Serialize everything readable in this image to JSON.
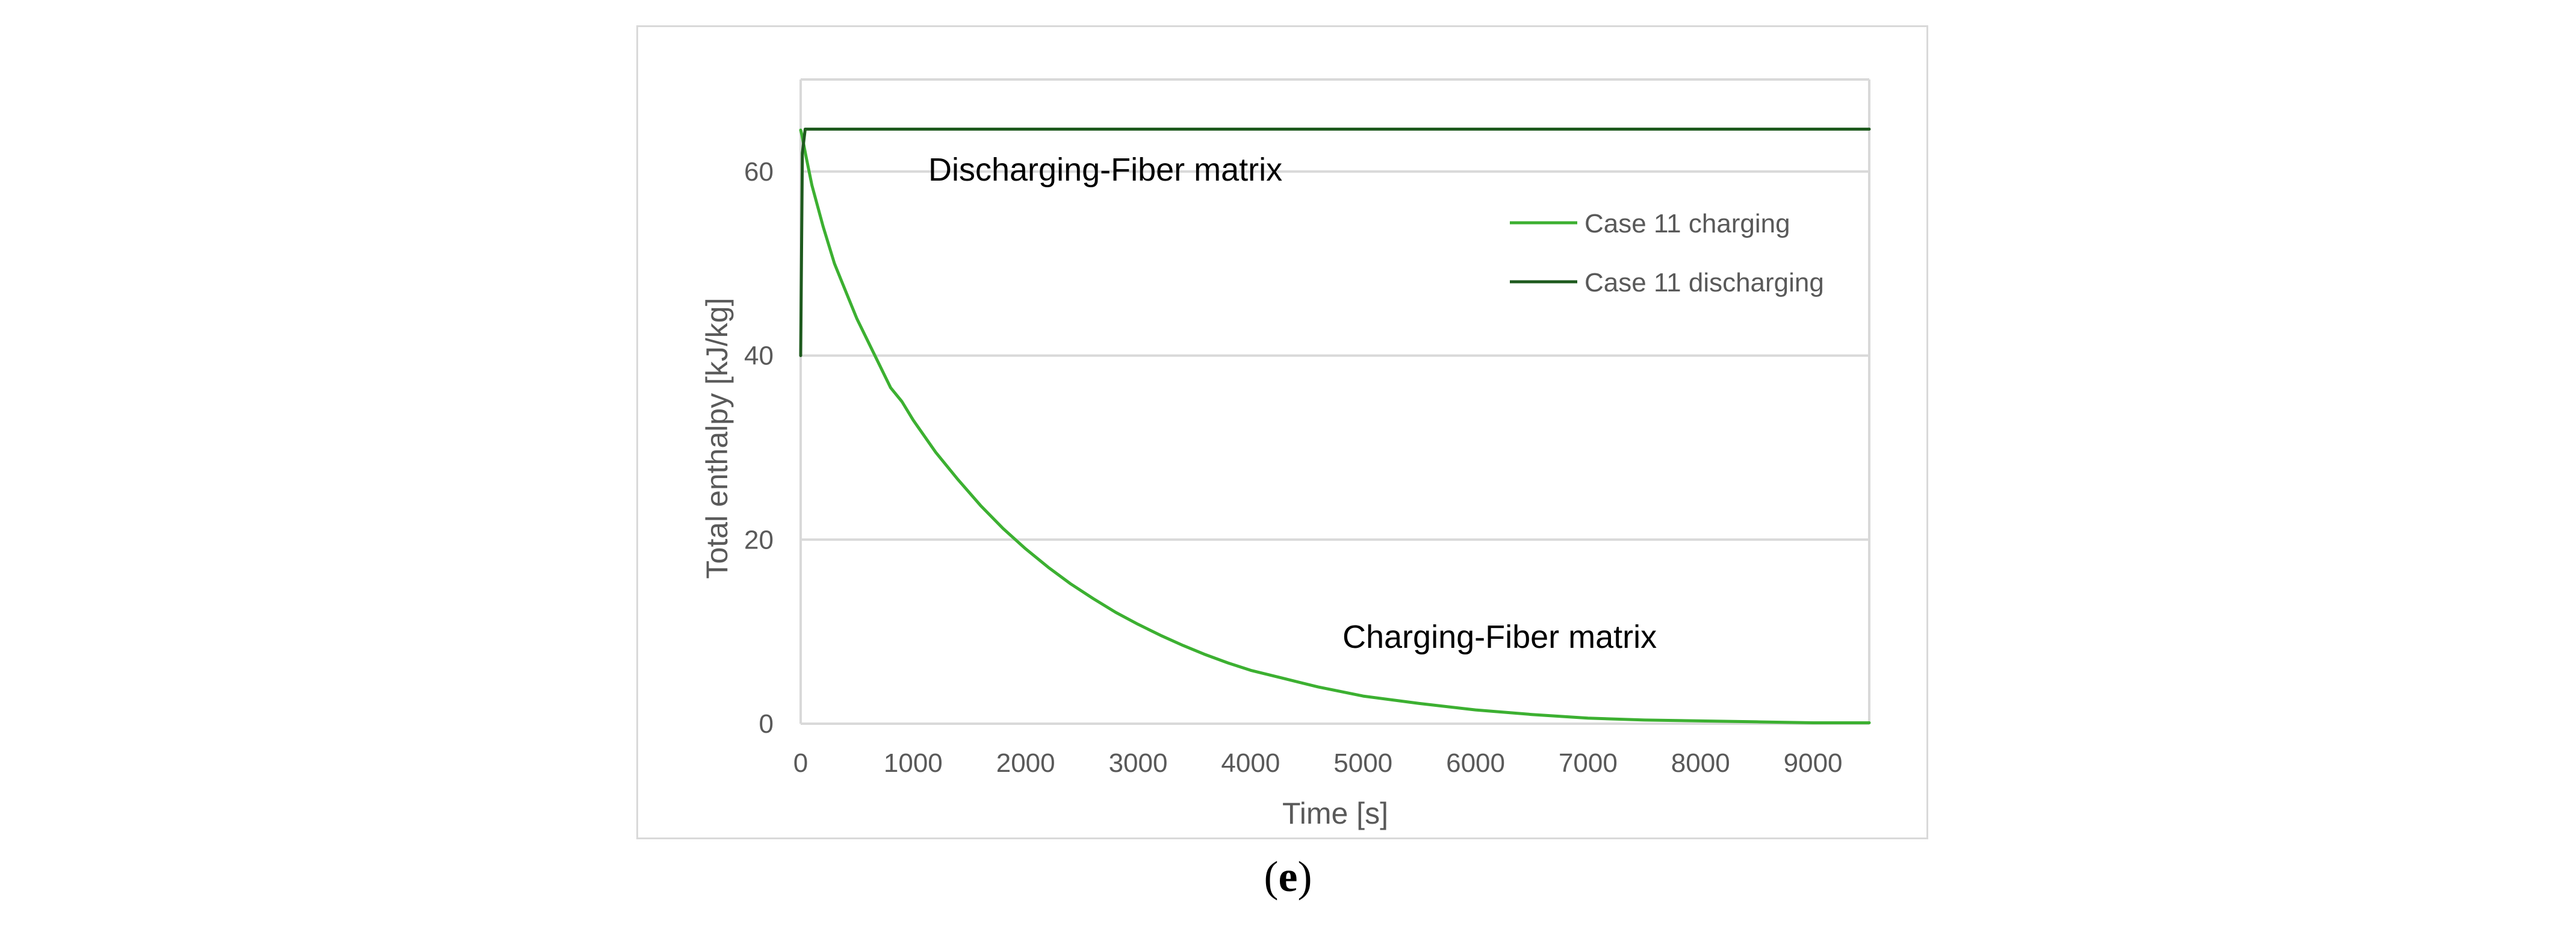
{
  "panel_label": {
    "open": "(",
    "letter": "e",
    "close": ")"
  },
  "colors": {
    "charging": "#3cb031",
    "discharging": "#1e5a1e",
    "grid": "#d9d9d9",
    "text": "#595959"
  },
  "chart_data": {
    "type": "line",
    "title": "",
    "xlabel": "Time [s]",
    "ylabel": "Total enthalpy [kJ/kg]",
    "xlim": [
      0,
      9500
    ],
    "ylim": [
      0,
      70
    ],
    "x_ticks": [
      0,
      1000,
      2000,
      3000,
      4000,
      5000,
      6000,
      7000,
      8000,
      9000
    ],
    "x_tick_labels": [
      "0",
      "1000",
      "2000",
      "3000",
      "4000",
      "5000",
      "6000",
      "7000",
      "8000",
      "9000"
    ],
    "y_ticks": [
      0,
      20,
      40,
      60
    ],
    "y_tick_labels": [
      "0",
      "20",
      "40",
      "60"
    ],
    "grid": true,
    "legend_position": "top-right",
    "annotations": [
      {
        "text": "Discharging-Fiber matrix",
        "x": 1150,
        "y": 60
      },
      {
        "text": "Charging-Fiber matrix",
        "x": 4800,
        "y": 8
      }
    ],
    "series": [
      {
        "name": "Case 11 charging",
        "color": "#3cb031",
        "x": [
          0,
          10,
          50,
          100,
          200,
          300,
          400,
          500,
          600,
          700,
          800,
          900,
          1000,
          1200,
          1400,
          1600,
          1800,
          2000,
          2200,
          2400,
          2600,
          2800,
          3000,
          3200,
          3400,
          3600,
          3800,
          4000,
          4300,
          4600,
          5000,
          5500,
          6000,
          6500,
          7000,
          7500,
          8000,
          8500,
          9000,
          9500
        ],
        "y": [
          64.5,
          64,
          61.5,
          58.5,
          54,
          50,
          47,
          44,
          41.5,
          39,
          36.5,
          35,
          33,
          29.5,
          26.5,
          23.7,
          21.2,
          19,
          17,
          15.2,
          13.6,
          12.1,
          10.8,
          9.6,
          8.5,
          7.5,
          6.6,
          5.8,
          4.9,
          4.0,
          3.0,
          2.2,
          1.5,
          1.0,
          0.6,
          0.4,
          0.3,
          0.2,
          0.1,
          0.1
        ]
      },
      {
        "name": "Case 11 discharging",
        "color": "#1e5a1e",
        "x": [
          0,
          15,
          40,
          100,
          1000,
          2000,
          3000,
          4000,
          5000,
          6000,
          7000,
          8000,
          9000,
          9500
        ],
        "y": [
          40,
          62,
          64.6,
          64.6,
          64.6,
          64.6,
          64.6,
          64.6,
          64.6,
          64.6,
          64.6,
          64.6,
          64.6,
          64.6
        ]
      }
    ]
  }
}
